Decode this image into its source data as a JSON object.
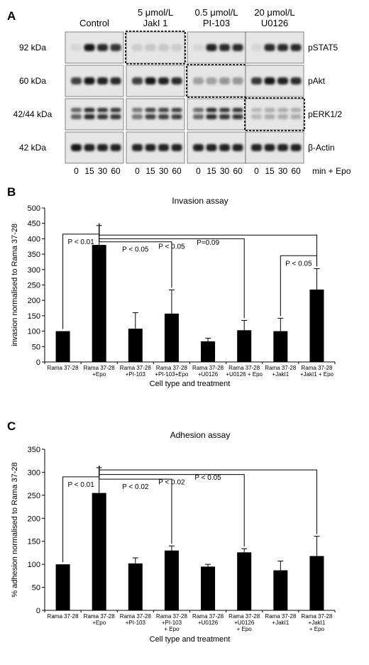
{
  "blot": {
    "panel_label": "A",
    "treatment_headers": [
      {
        "line1": "Control",
        "line2": ""
      },
      {
        "line1": "5 μmol/L",
        "line2": "JakI 1"
      },
      {
        "line1": "0.5 μmol/L",
        "line2": "PI-103"
      },
      {
        "line1": "20 μmol/L",
        "line2": "U0126"
      }
    ],
    "rows": [
      {
        "kda": "92 kDa",
        "protein": "pSTAT5",
        "levels": [
          [
            0.05,
            0.95,
            0.85,
            0.8
          ],
          [
            0.1,
            0.12,
            0.12,
            0.1
          ],
          [
            0.05,
            0.9,
            0.85,
            0.85
          ],
          [
            0.05,
            0.85,
            0.85,
            0.85
          ]
        ],
        "dashed": 1
      },
      {
        "kda": "60 kDa",
        "protein": "pAkt",
        "levels": [
          [
            0.75,
            0.95,
            0.9,
            0.85
          ],
          [
            0.75,
            0.95,
            0.9,
            0.85
          ],
          [
            0.3,
            0.3,
            0.35,
            0.35
          ],
          [
            0.8,
            0.95,
            0.9,
            0.85
          ]
        ],
        "dashed": 2
      },
      {
        "kda": "42/44 kDa",
        "protein": "pERK1/2",
        "levels": [
          [
            0.6,
            0.85,
            0.8,
            0.8
          ],
          [
            0.5,
            0.75,
            0.75,
            0.75
          ],
          [
            0.55,
            0.85,
            0.8,
            0.8
          ],
          [
            0.2,
            0.25,
            0.25,
            0.25
          ]
        ],
        "dashed": 3
      },
      {
        "kda": "42 kDa",
        "protein": "β-Actin",
        "levels": [
          [
            0.95,
            0.9,
            0.9,
            0.9
          ],
          [
            0.9,
            0.9,
            0.9,
            0.9
          ],
          [
            0.9,
            0.9,
            0.9,
            0.9
          ],
          [
            0.9,
            0.9,
            0.9,
            0.9
          ]
        ],
        "dashed": -1
      }
    ],
    "lane_labels": [
      "0",
      "15",
      "30",
      "60"
    ],
    "lane_suffix": "min + Epo"
  },
  "chart_data": [
    {
      "panel_label": "B",
      "type": "bar",
      "title": "Invasion assay",
      "xlabel": "Cell type and treatment",
      "ylabel": "invasion normalised to Rama 37-28",
      "ylim": [
        0,
        500
      ],
      "yticks": [
        0,
        50,
        100,
        150,
        200,
        250,
        300,
        350,
        400,
        450,
        500
      ],
      "categories": [
        {
          "line1": "Rama 37-28",
          "line2": ""
        },
        {
          "line1": "Rama 37-28",
          "line2": "+Epo"
        },
        {
          "line1": "Rama 37-28",
          "line2": "+PI-103"
        },
        {
          "line1": "Rama 37-28",
          "line2": "+PI-103+Epo"
        },
        {
          "line1": "Rama 37-28",
          "line2": "+U0126"
        },
        {
          "line1": "Rama 37-28",
          "line2": "+U0126 + Epo"
        },
        {
          "line1": "Rama 37-28",
          "line2": "+JakI1"
        },
        {
          "line1": "Rama 37-28",
          "line2": "+JakI1 + Epo"
        }
      ],
      "values": [
        100,
        380,
        108,
        157,
        67,
        103,
        100,
        235
      ],
      "errors": [
        0,
        63,
        52,
        77,
        10,
        32,
        42,
        68
      ],
      "comparisons": [
        {
          "from": 0,
          "to": 1,
          "label": "P < 0.01",
          "level": 415
        },
        {
          "from": 1,
          "to": 3,
          "label": "P < 0.05",
          "level": 390
        },
        {
          "from": 1,
          "to": 5,
          "label": "P < 0.05",
          "level": 400
        },
        {
          "from": 1,
          "to": 7,
          "label": "P=0.09",
          "level": 412
        },
        {
          "from": 6,
          "to": 7,
          "label": "P < 0.05",
          "level": 345
        }
      ]
    },
    {
      "panel_label": "C",
      "type": "bar",
      "title": "Adhesion assay",
      "xlabel": "Cell type and treatment",
      "ylabel": "% adhesion normalised to Rama 37-28",
      "ylim": [
        0,
        350
      ],
      "yticks": [
        0,
        50,
        100,
        150,
        200,
        250,
        300,
        350
      ],
      "categories": [
        {
          "line1": "Rama 37-28",
          "line2": ""
        },
        {
          "line1": "Rama 37-28",
          "line2": "+Epo"
        },
        {
          "line1": "Rama 37-28",
          "line2": "+PI-103"
        },
        {
          "line1": "Rama 37-28",
          "line2": "+PI-103",
          "line3": "+ Epo"
        },
        {
          "line1": "Rama 37-28",
          "line2": "+U0126"
        },
        {
          "line1": "Rama 37-28",
          "line2": "+U0126",
          "line3": "+ Epo"
        },
        {
          "line1": "Rama 37-28",
          "line2": "+JakI1"
        },
        {
          "line1": "Rama 37-28",
          "line2": "+JakI1",
          "line3": "+ Epo"
        }
      ],
      "values": [
        100,
        255,
        102,
        130,
        95,
        126,
        87,
        118
      ],
      "errors": [
        0,
        55,
        12,
        10,
        5,
        8,
        20,
        43
      ],
      "comparisons": [
        {
          "from": 0,
          "to": 1,
          "label": "P < 0.01",
          "level": 290
        },
        {
          "from": 1,
          "to": 3,
          "label": "P < 0.02",
          "level": 285
        },
        {
          "from": 1,
          "to": 5,
          "label": "P < 0.02",
          "level": 295
        },
        {
          "from": 1,
          "to": 7,
          "label": "P < 0.05",
          "level": 305
        }
      ]
    }
  ]
}
